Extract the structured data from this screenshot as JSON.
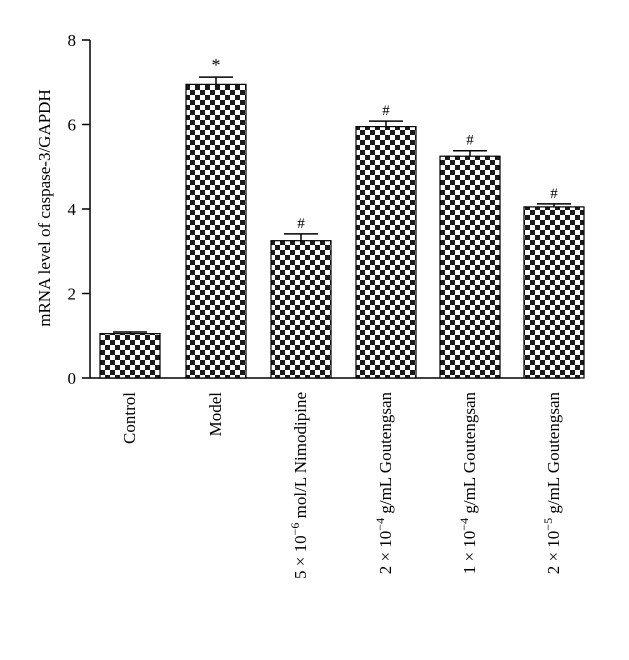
{
  "chart_data": {
    "type": "bar",
    "ylabel": "mRNA level of caspase-3/GAPDH",
    "xlabel": "",
    "ylim": [
      0,
      8
    ],
    "yticks": [
      0,
      2,
      4,
      6,
      8
    ],
    "categories": [
      {
        "pre": "Control",
        "sup": "",
        "post": ""
      },
      {
        "pre": "Model",
        "sup": "",
        "post": ""
      },
      {
        "pre": "5 × 10",
        "sup": "−6",
        "post": " mol/L Nimodipine"
      },
      {
        "pre": "2 × 10",
        "sup": "−4",
        "post": " g/mL Goutengsan"
      },
      {
        "pre": "1 × 10",
        "sup": "−4",
        "post": " g/mL Goutengsan"
      },
      {
        "pre": "2 × 10",
        "sup": "−5",
        "post": " g/mL Goutengsan"
      }
    ],
    "values": [
      1.05,
      6.95,
      3.25,
      5.95,
      5.25,
      4.05
    ],
    "errors": [
      0.04,
      0.17,
      0.16,
      0.13,
      0.13,
      0.07
    ],
    "annotations": [
      "",
      "*",
      "#",
      "#",
      "#",
      "#"
    ],
    "bar_pattern": "checkerboard",
    "colors": {
      "dark": "#1a1a1a",
      "light": "#ffffff",
      "axis": "#000000"
    }
  }
}
